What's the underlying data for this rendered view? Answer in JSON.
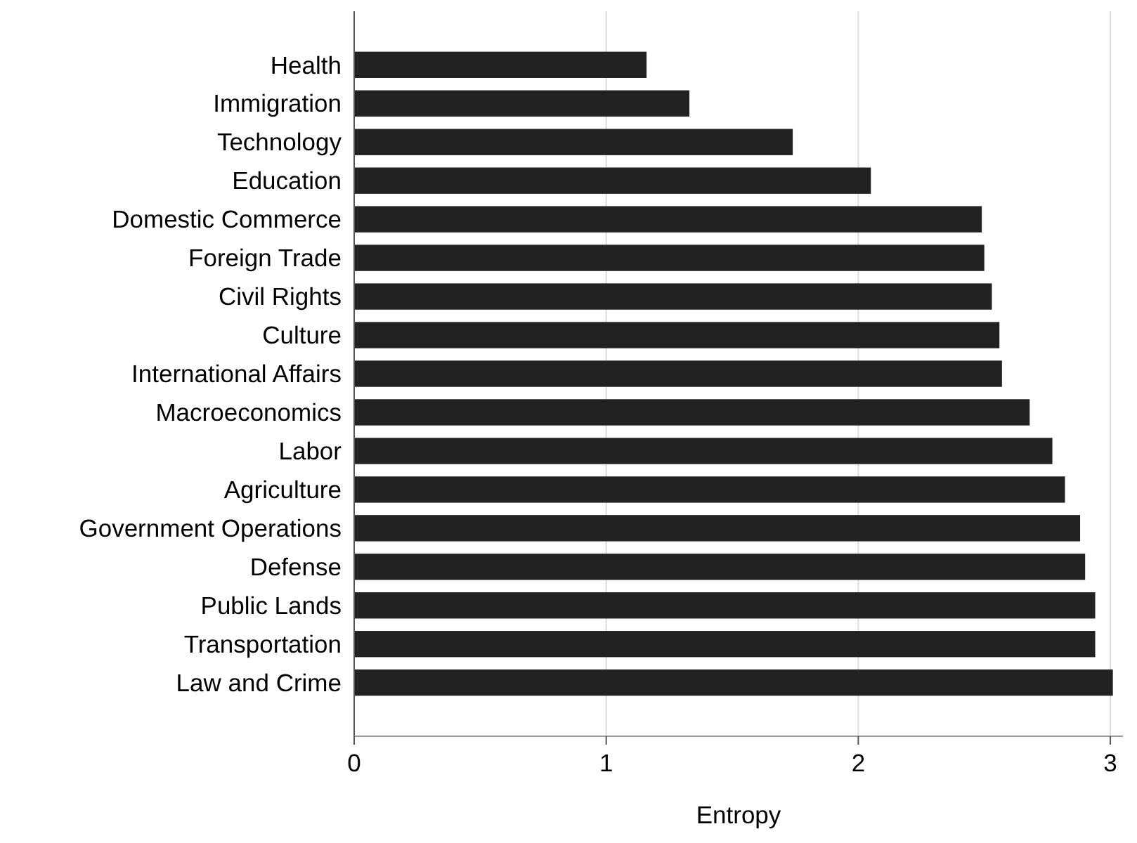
{
  "chart_data": {
    "type": "bar",
    "orientation": "horizontal",
    "xlabel": "Entropy",
    "categories": [
      "Health",
      "Immigration",
      "Technology",
      "Education",
      "Domestic Commerce",
      "Foreign Trade",
      "Civil Rights",
      "Culture",
      "International Affairs",
      "Macroeconomics",
      "Labor",
      "Agriculture",
      "Government Operations",
      "Defense",
      "Public Lands",
      "Transportation",
      "Law and Crime"
    ],
    "values": [
      1.16,
      1.33,
      1.74,
      2.05,
      2.49,
      2.5,
      2.53,
      2.56,
      2.57,
      2.68,
      2.77,
      2.82,
      2.88,
      2.9,
      2.94,
      2.94,
      3.01
    ],
    "color": "#222222",
    "xlim": [
      0,
      3.05
    ],
    "xticks": [
      0,
      1,
      2,
      3
    ],
    "grid": "x"
  }
}
